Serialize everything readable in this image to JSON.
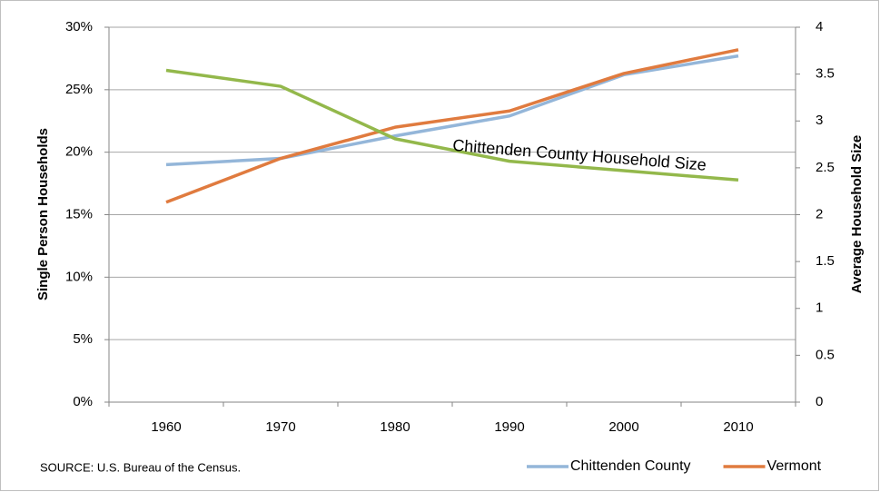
{
  "chart_data": {
    "type": "line",
    "y_label": "Single Person Households",
    "y2_label": "Average Household Size",
    "source": "SOURCE:  U.S. Bureau of the Census.",
    "categories": [
      "1960",
      "1970",
      "1980",
      "1990",
      "2000",
      "2010"
    ],
    "series": [
      {
        "name": "Chittenden County",
        "color": "#94b6d9",
        "values": [
          19.0,
          19.5,
          21.3,
          22.9,
          26.2,
          27.7
        ]
      },
      {
        "name": "Vermont",
        "color": "#e07b3f",
        "values": [
          16.0,
          19.5,
          22.0,
          23.3,
          26.3,
          28.2
        ]
      },
      {
        "name": "Chittenden County Household Size",
        "color": "#93b84b",
        "axis": "y2",
        "in_legend": false,
        "values": [
          3.54,
          3.37,
          2.81,
          2.57,
          2.47,
          2.37
        ]
      }
    ],
    "ylim": [
      0,
      30
    ],
    "yticks": [
      {
        "value": 0,
        "label": "0%"
      },
      {
        "value": 5,
        "label": "5%"
      },
      {
        "value": 10,
        "label": "10%"
      },
      {
        "value": 15,
        "label": "15%"
      },
      {
        "value": 20,
        "label": "20%"
      },
      {
        "value": 25,
        "label": "25%"
      },
      {
        "value": 30,
        "label": "30%"
      }
    ],
    "y2lim": [
      0,
      4
    ],
    "y2ticks": [
      0,
      0.5,
      1,
      1.5,
      2,
      2.5,
      3,
      3.5,
      4
    ],
    "grid": true,
    "legend": "bottom-right"
  }
}
